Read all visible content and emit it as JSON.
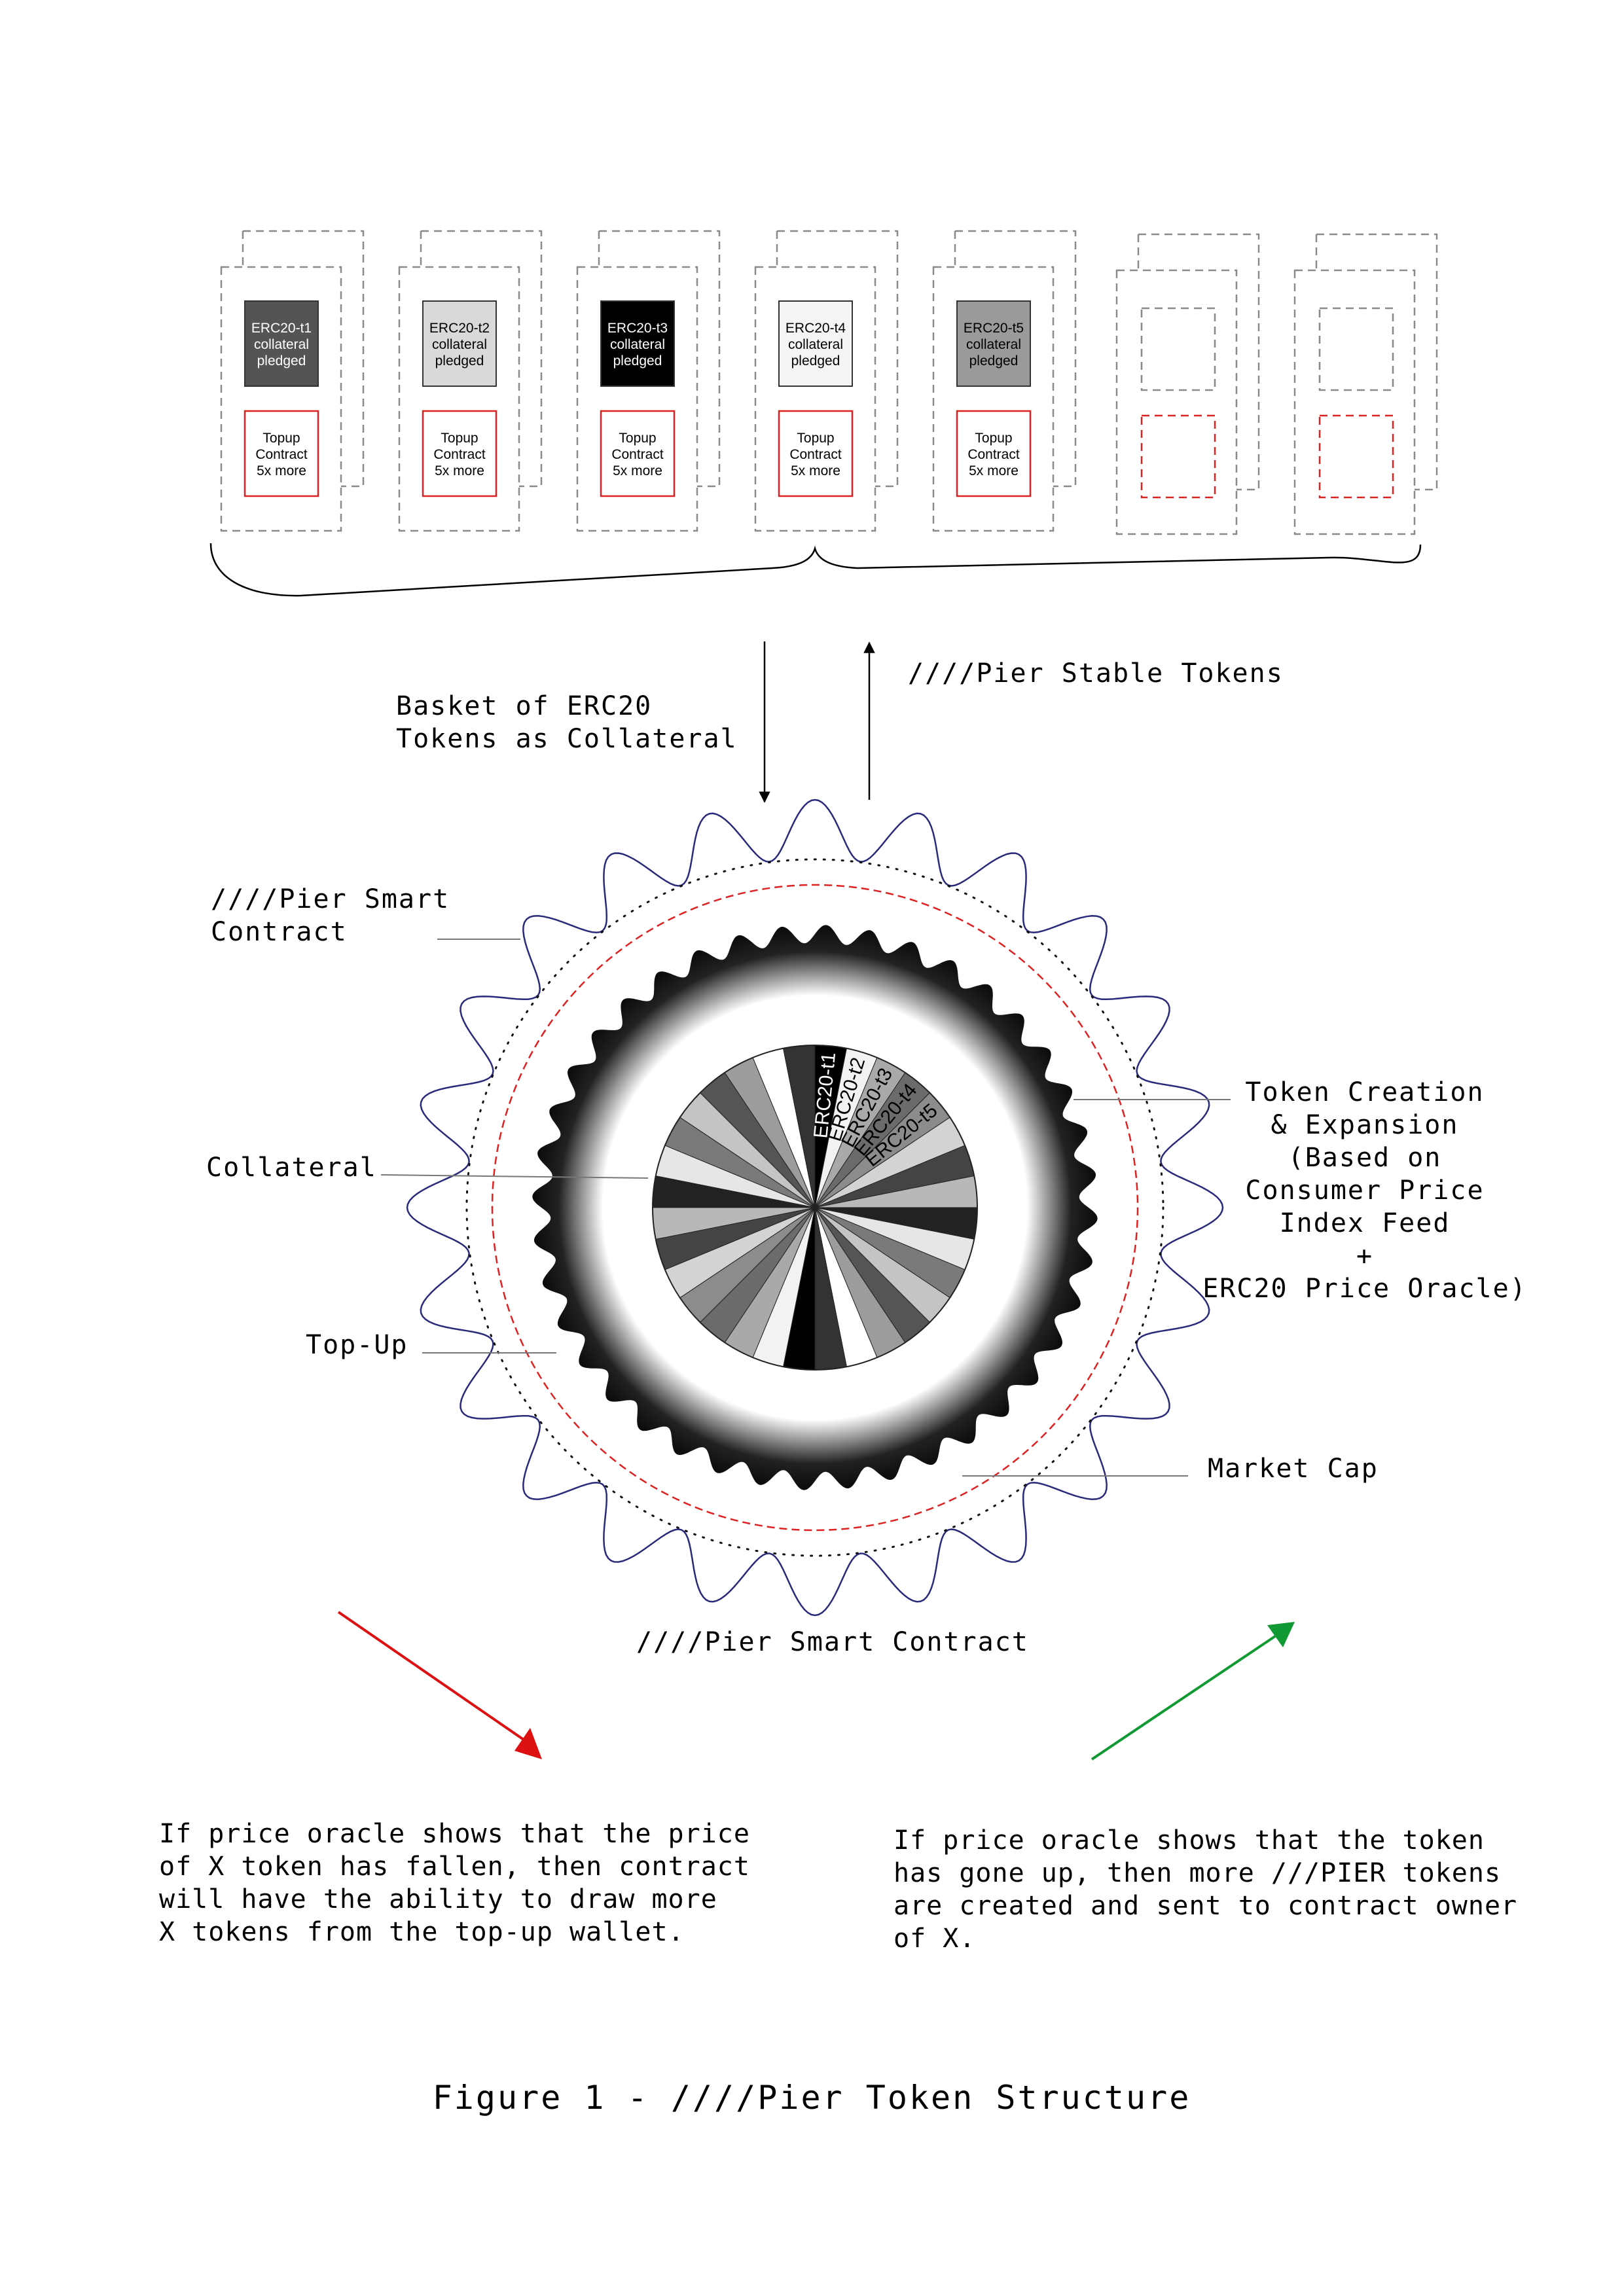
{
  "cards": [
    {
      "id": "t1",
      "lines": [
        "ERC20-t1",
        "collateral",
        "pledged"
      ],
      "fill": "#545454",
      "text_color": "#ffffff",
      "topup_lines": [
        "Topup",
        "Contract",
        "5x more"
      ]
    },
    {
      "id": "t2",
      "lines": [
        "ERC20-t2",
        "collateral",
        "pledged"
      ],
      "fill": "#d9d9d9",
      "text_color": "#000000",
      "topup_lines": [
        "Topup",
        "Contract",
        "5x more"
      ]
    },
    {
      "id": "t3",
      "lines": [
        "ERC20-t3",
        "collateral",
        "pledged"
      ],
      "fill": "#000000",
      "text_color": "#ffffff",
      "topup_lines": [
        "Topup",
        "Contract",
        "5x more"
      ]
    },
    {
      "id": "t4",
      "lines": [
        "ERC20-t4",
        "collateral",
        "pledged"
      ],
      "fill": "#f4f4f4",
      "text_color": "#000000",
      "topup_lines": [
        "Topup",
        "Contract",
        "5x more"
      ]
    },
    {
      "id": "t5",
      "lines": [
        "ERC20-t5",
        "collateral",
        "pledged"
      ],
      "fill": "#9a9a9a",
      "text_color": "#000000",
      "topup_lines": [
        "Topup",
        "Contract",
        "5x more"
      ]
    },
    {
      "id": "empty-1",
      "lines": [],
      "fill": "",
      "text_color": "",
      "topup_lines": []
    },
    {
      "id": "empty-2",
      "lines": [],
      "fill": "",
      "text_color": "",
      "topup_lines": []
    }
  ],
  "labels": {
    "basket": [
      "Basket of ERC20",
      "Tokens as Collateral"
    ],
    "stable": "////Pier Stable Tokens",
    "smart_contract_side": [
      "////Pier Smart",
      "Contract"
    ],
    "collateral": "Collateral",
    "topup": "Top-Up",
    "token_creation": [
      "Token Creation",
      "& Expansion",
      "(Based on",
      "Consumer Price",
      "Index Feed",
      "+",
      "ERC20 Price Oracle)"
    ],
    "market_cap": "Market Cap",
    "smart_contract_bottom": "////Pier Smart Contract"
  },
  "pie_labels": [
    "ERC20-t1",
    "ERC20-t2",
    "ERC20-t3",
    "ERC20-t4",
    "ERC20-t5"
  ],
  "pie_colors": [
    "#000000",
    "#f2f2f2",
    "#a9a9a9",
    "#6b6b6b",
    "#8c8c8c",
    "#d3d3d3",
    "#444444",
    "#b8b8b8",
    "#222222",
    "#e6e6e6",
    "#7a7a7a",
    "#c4c4c4",
    "#555555",
    "#9c9c9c",
    "#ffffff",
    "#333333"
  ],
  "notes": {
    "left": [
      "If price oracle shows that the price",
      "of X token has fallen, then contract",
      "will have the ability to draw more",
      "X tokens from the top-up wallet."
    ],
    "right": [
      "If price oracle shows that the token",
      "has gone up, then more ///PIER tokens",
      "are created and sent to contract owner",
      "of X."
    ]
  },
  "arrow_colors": {
    "down": "#dd1111",
    "up": "#119933"
  },
  "caption": "Figure 1 - ////Pier Token Structure"
}
